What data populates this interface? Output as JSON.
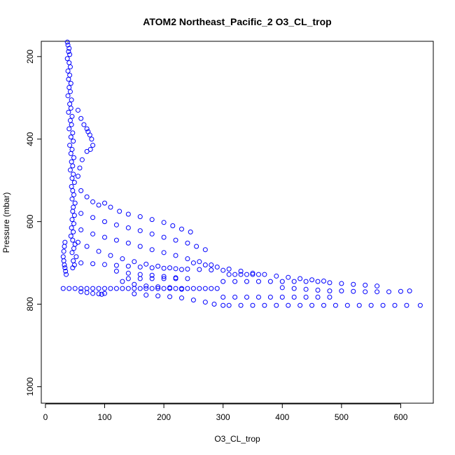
{
  "chart_data": {
    "type": "scatter",
    "title": "ATOM2 Northeast_Pacific_2 O3_CL_trop",
    "xlabel": "O3_CL_trop",
    "ylabel": "Pressure (mbar)",
    "xlim": [
      -7,
      655
    ],
    "ylim": [
      1040,
      163
    ],
    "y_reversed": true,
    "grid": false,
    "marker": "open-circle",
    "color": "#0000ff",
    "x_ticks": [
      0,
      100,
      200,
      300,
      400,
      500,
      600
    ],
    "y_ticks": [
      200,
      400,
      600,
      800,
      1000
    ],
    "x_tick_labels": [
      "0",
      "100",
      "200",
      "300",
      "400",
      "500",
      "600"
    ],
    "y_tick_labels": [
      "200",
      "400",
      "600",
      "800",
      "1000"
    ],
    "series": [
      {
        "points": [
          [
            37,
            165
          ],
          [
            38,
            172
          ],
          [
            40,
            180
          ],
          [
            39,
            188
          ],
          [
            41,
            195
          ],
          [
            37,
            205
          ],
          [
            40,
            215
          ],
          [
            42,
            225
          ],
          [
            38,
            235
          ],
          [
            41,
            245
          ],
          [
            39,
            255
          ],
          [
            43,
            265
          ],
          [
            40,
            275
          ],
          [
            42,
            285
          ],
          [
            38,
            295
          ],
          [
            44,
            305
          ],
          [
            41,
            315
          ],
          [
            43,
            325
          ],
          [
            39,
            335
          ],
          [
            45,
            345
          ],
          [
            42,
            355
          ],
          [
            44,
            365
          ],
          [
            40,
            375
          ],
          [
            46,
            385
          ],
          [
            43,
            395
          ],
          [
            47,
            405
          ],
          [
            41,
            415
          ],
          [
            45,
            425
          ],
          [
            43,
            435
          ],
          [
            48,
            445
          ],
          [
            44,
            455
          ],
          [
            46,
            465
          ],
          [
            42,
            475
          ],
          [
            47,
            485
          ],
          [
            45,
            495
          ],
          [
            49,
            505
          ],
          [
            44,
            515
          ],
          [
            46,
            525
          ],
          [
            48,
            535
          ],
          [
            45,
            545
          ],
          [
            50,
            555
          ],
          [
            47,
            565
          ],
          [
            46,
            575
          ],
          [
            49,
            585
          ],
          [
            45,
            595
          ],
          [
            48,
            605
          ],
          [
            44,
            615
          ],
          [
            47,
            625
          ],
          [
            43,
            635
          ],
          [
            46,
            645
          ],
          [
            50,
            655
          ],
          [
            48,
            665
          ],
          [
            45,
            675
          ],
          [
            52,
            685
          ],
          [
            47,
            695
          ],
          [
            49,
            705
          ],
          [
            46,
            712
          ],
          [
            55,
            330
          ],
          [
            60,
            350
          ],
          [
            65,
            365
          ],
          [
            70,
            375
          ],
          [
            72,
            382
          ],
          [
            75,
            390
          ],
          [
            78,
            400
          ],
          [
            80,
            415
          ],
          [
            76,
            425
          ],
          [
            70,
            430
          ],
          [
            62,
            450
          ],
          [
            58,
            470
          ],
          [
            55,
            490
          ],
          [
            60,
            525
          ],
          [
            70,
            540
          ],
          [
            80,
            552
          ],
          [
            90,
            560
          ],
          [
            100,
            555
          ],
          [
            110,
            565
          ],
          [
            125,
            575
          ],
          [
            140,
            582
          ],
          [
            160,
            588
          ],
          [
            180,
            595
          ],
          [
            200,
            602
          ],
          [
            215,
            610
          ],
          [
            230,
            618
          ],
          [
            245,
            625
          ],
          [
            60,
            580
          ],
          [
            80,
            590
          ],
          [
            100,
            600
          ],
          [
            120,
            608
          ],
          [
            140,
            615
          ],
          [
            160,
            622
          ],
          [
            180,
            630
          ],
          [
            200,
            638
          ],
          [
            220,
            645
          ],
          [
            240,
            652
          ],
          [
            255,
            660
          ],
          [
            270,
            668
          ],
          [
            60,
            620
          ],
          [
            80,
            630
          ],
          [
            100,
            638
          ],
          [
            120,
            645
          ],
          [
            140,
            652
          ],
          [
            160,
            660
          ],
          [
            180,
            668
          ],
          [
            200,
            675
          ],
          [
            220,
            682
          ],
          [
            240,
            690
          ],
          [
            260,
            697
          ],
          [
            280,
            705
          ],
          [
            55,
            650
          ],
          [
            70,
            660
          ],
          [
            90,
            672
          ],
          [
            110,
            682
          ],
          [
            130,
            690
          ],
          [
            150,
            697
          ],
          [
            170,
            703
          ],
          [
            190,
            708
          ],
          [
            210,
            712
          ],
          [
            230,
            716
          ],
          [
            33,
            650
          ],
          [
            32,
            660
          ],
          [
            31,
            672
          ],
          [
            30,
            685
          ],
          [
            31,
            695
          ],
          [
            32,
            705
          ],
          [
            33,
            712
          ],
          [
            34,
            720
          ],
          [
            35,
            728
          ],
          [
            60,
            700
          ],
          [
            80,
            702
          ],
          [
            100,
            704
          ],
          [
            120,
            706
          ],
          [
            140,
            708
          ],
          [
            160,
            710
          ],
          [
            180,
            712
          ],
          [
            200,
            713
          ],
          [
            220,
            714
          ],
          [
            240,
            715
          ],
          [
            260,
            716
          ],
          [
            280,
            717
          ],
          [
            300,
            718
          ],
          [
            250,
            700
          ],
          [
            270,
            705
          ],
          [
            290,
            710
          ],
          [
            310,
            715
          ],
          [
            330,
            720
          ],
          [
            350,
            725
          ],
          [
            370,
            728
          ],
          [
            390,
            732
          ],
          [
            410,
            735
          ],
          [
            430,
            738
          ],
          [
            450,
            741
          ],
          [
            470,
            744
          ],
          [
            140,
            738
          ],
          [
            160,
            738
          ],
          [
            180,
            738
          ],
          [
            200,
            738
          ],
          [
            220,
            738
          ],
          [
            240,
            738
          ],
          [
            310,
            728
          ],
          [
            320,
            728
          ],
          [
            330,
            728
          ],
          [
            340,
            728
          ],
          [
            350,
            728
          ],
          [
            360,
            728
          ],
          [
            300,
            745
          ],
          [
            320,
            745
          ],
          [
            340,
            745
          ],
          [
            360,
            745
          ],
          [
            380,
            745
          ],
          [
            400,
            745
          ],
          [
            420,
            745
          ],
          [
            440,
            745
          ],
          [
            460,
            745
          ],
          [
            480,
            748
          ],
          [
            500,
            750
          ],
          [
            520,
            752
          ],
          [
            540,
            754
          ],
          [
            560,
            756
          ],
          [
            400,
            760
          ],
          [
            420,
            762
          ],
          [
            440,
            764
          ],
          [
            460,
            766
          ],
          [
            480,
            768
          ],
          [
            500,
            768
          ],
          [
            520,
            769
          ],
          [
            540,
            770
          ],
          [
            560,
            770
          ],
          [
            580,
            770
          ],
          [
            600,
            769
          ],
          [
            615,
            768
          ],
          [
            30,
            762
          ],
          [
            40,
            762
          ],
          [
            50,
            762
          ],
          [
            60,
            762
          ],
          [
            70,
            762
          ],
          [
            80,
            762
          ],
          [
            90,
            762
          ],
          [
            100,
            762
          ],
          [
            110,
            762
          ],
          [
            120,
            762
          ],
          [
            130,
            762
          ],
          [
            140,
            762
          ],
          [
            150,
            762
          ],
          [
            160,
            762
          ],
          [
            170,
            762
          ],
          [
            180,
            762
          ],
          [
            190,
            762
          ],
          [
            200,
            762
          ],
          [
            210,
            762
          ],
          [
            220,
            762
          ],
          [
            230,
            762
          ],
          [
            240,
            762
          ],
          [
            250,
            762
          ],
          [
            260,
            762
          ],
          [
            270,
            762
          ],
          [
            280,
            762
          ],
          [
            290,
            762
          ],
          [
            60,
            770
          ],
          [
            70,
            772
          ],
          [
            80,
            774
          ],
          [
            90,
            775
          ],
          [
            95,
            776
          ],
          [
            100,
            774
          ],
          [
            150,
            775
          ],
          [
            170,
            778
          ],
          [
            190,
            780
          ],
          [
            210,
            782
          ],
          [
            230,
            785
          ],
          [
            250,
            790
          ],
          [
            270,
            795
          ],
          [
            285,
            800
          ],
          [
            300,
            803
          ],
          [
            300,
            783
          ],
          [
            320,
            783
          ],
          [
            340,
            783
          ],
          [
            360,
            783
          ],
          [
            380,
            783
          ],
          [
            400,
            783
          ],
          [
            420,
            783
          ],
          [
            440,
            783
          ],
          [
            460,
            783
          ],
          [
            480,
            783
          ],
          [
            310,
            803
          ],
          [
            330,
            803
          ],
          [
            350,
            803
          ],
          [
            370,
            803
          ],
          [
            390,
            803
          ],
          [
            410,
            803
          ],
          [
            430,
            803
          ],
          [
            450,
            803
          ],
          [
            470,
            803
          ],
          [
            490,
            803
          ],
          [
            510,
            803
          ],
          [
            530,
            803
          ],
          [
            550,
            803
          ],
          [
            570,
            803
          ],
          [
            590,
            803
          ],
          [
            610,
            803
          ],
          [
            633,
            803
          ],
          [
            130,
            745
          ],
          [
            150,
            752
          ],
          [
            170,
            756
          ],
          [
            190,
            758
          ],
          [
            210,
            760
          ],
          [
            230,
            764
          ],
          [
            120,
            720
          ],
          [
            140,
            725
          ],
          [
            160,
            728
          ],
          [
            180,
            730
          ],
          [
            200,
            733
          ],
          [
            220,
            736
          ]
        ]
      }
    ]
  }
}
